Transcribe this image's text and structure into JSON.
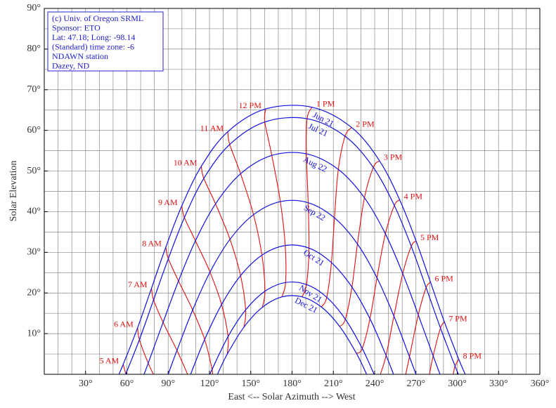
{
  "chart_data": {
    "type": "line",
    "xlabel": "East <-- Solar Azimuth --> West",
    "ylabel": "Solar Elevation",
    "annotations": [
      "(c) Univ. of Oregon SRML",
      "Sponsor: ETO",
      "Lat: 47.18; Long: -98.14",
      "(Standard) time zone: -6",
      "NDAWN station",
      "Dazey, ND"
    ],
    "xlim": [
      0,
      360
    ],
    "ylim": [
      0,
      90
    ],
    "xticks": [
      {
        "value": 30,
        "label": "30°"
      },
      {
        "value": 60,
        "label": "60°"
      },
      {
        "value": 90,
        "label": "90°"
      },
      {
        "value": 120,
        "label": "120°"
      },
      {
        "value": 150,
        "label": "150°"
      },
      {
        "value": 180,
        "label": "180°"
      },
      {
        "value": 210,
        "label": "210°"
      },
      {
        "value": 240,
        "label": "240°"
      },
      {
        "value": 270,
        "label": "270°"
      },
      {
        "value": 300,
        "label": "300°"
      },
      {
        "value": 330,
        "label": "330°"
      },
      {
        "value": 360,
        "label": "360°"
      }
    ],
    "yticks": [
      {
        "value": 10,
        "label": "10°"
      },
      {
        "value": 20,
        "label": "20°"
      },
      {
        "value": 30,
        "label": "30°"
      },
      {
        "value": 40,
        "label": "40°"
      },
      {
        "value": 50,
        "label": "50°"
      },
      {
        "value": 60,
        "label": "60°"
      },
      {
        "value": 70,
        "label": "70°"
      },
      {
        "value": 80,
        "label": "80°"
      },
      {
        "value": 90,
        "label": "90°"
      }
    ],
    "grid": true,
    "minor_grid": {
      "x": 10,
      "y": 5
    },
    "series": [
      {
        "name": "Jun 21",
        "color": "#1010e0",
        "x": [
          54.2,
          57.3,
          67.8,
          77.9,
          88.3,
          99.9,
          114.1,
          133.3,
          160.8,
          194.5,
          223.3,
          243.5,
          258.2,
          270.1,
          280.6,
          290.7,
          301.1,
          305.8
        ],
        "values": [
          0,
          2.42,
          11.46,
          21.18,
          31.29,
          41.44,
          51.18,
          59.68,
          65.28,
          65.7,
          60.71,
          52.53,
          42.91,
          32.78,
          22.64,
          12.84,
          3.69,
          0
        ]
      },
      {
        "name": "Jul 21",
        "color": "#1010e0",
        "x": [
          59.1,
          69.1,
          79.4,
          90.1,
          101.8,
          115.9,
          134.7,
          160.2,
          190.9,
          218.5,
          239.0,
          254.3,
          266.6,
          277.4,
          287.8,
          298.4,
          300.9
        ],
        "values": [
          0,
          8.51,
          18.3,
          28.44,
          38.56,
          48.19,
          56.54,
          62.07,
          62.87,
          58.56,
          50.88,
          41.53,
          31.49,
          21.32,
          11.38,
          2.02,
          0
        ]
      },
      {
        "name": "Aug 22",
        "color": "#1010e0",
        "x": [
          72.5,
          75.5,
          86.3,
          97.5,
          109.8,
          124.4,
          142.6,
          165.3,
          190.4,
          213.6,
          232.6,
          247.8,
          260.4,
          271.7,
          282.5,
          287.5
        ],
        "values": [
          0,
          2.73,
          12.78,
          22.95,
          32.85,
          41.92,
          49.33,
          53.84,
          54.23,
          50.4,
          43.41,
          34.56,
          24.77,
          14.61,
          4.52,
          0
        ]
      },
      {
        "name": "Sep 22",
        "color": "#1010e0",
        "x": [
          90,
          96.4,
          107.8,
          120.4,
          134.9,
          152.0,
          171.5,
          191.7,
          210.8,
          227.5,
          241.7,
          254.0,
          265.3,
          270
        ],
        "values": [
          0,
          5.88,
          15.83,
          25.13,
          33.2,
          39.27,
          42.49,
          42.21,
          38.49,
          32.05,
          23.73,
          14.31,
          4.3,
          0
        ]
      },
      {
        "name": "Oct 21",
        "color": "#1010e0",
        "x": [
          106.3,
          116.5,
          128.8,
          142.6,
          158.1,
          175.0,
          192.3,
          208.6,
          223.5,
          236.6,
          248.3,
          253.7
        ],
        "values": [
          0,
          8.57,
          17.16,
          24.27,
          29.31,
          31.68,
          31.04,
          27.47,
          21.46,
          13.66,
          4.63,
          0
        ]
      },
      {
        "name": "Nov 21",
        "color": "#1010e0",
        "x": [
          120.4,
          121.9,
          133.5,
          146.3,
          160.3,
          175.3,
          190.5,
          205.2,
          218.7,
          231.0,
          239.6
        ],
        "values": [
          0,
          1.21,
          9.28,
          15.84,
          20.43,
          22.58,
          22.07,
          18.94,
          13.54,
          6.36,
          0
        ]
      },
      {
        "name": "Dec 21",
        "color": "#1010e0",
        "x": [
          125.8,
          132.9,
          145.1,
          158.4,
          172.6,
          187.2,
          201.3,
          214.6,
          226.8,
          234.2
        ],
        "values": [
          0,
          4.95,
          11.63,
          16.47,
          19.03,
          19.06,
          16.56,
          11.77,
          5.13,
          0
        ]
      }
    ],
    "hour_lines": [
      {
        "name": "5 AM",
        "color": "#e01010",
        "x": [
          57.3,
          59.3
        ],
        "values": [
          2.42,
          0
        ]
      },
      {
        "name": "6 AM",
        "color": "#e01010",
        "x": [
          67.8,
          69.1,
          75.5,
          79.3
        ],
        "values": [
          11.46,
          8.51,
          2.73,
          0
        ]
      },
      {
        "name": "7 AM",
        "color": "#e01010",
        "x": [
          77.9,
          79.4,
          86.3,
          96.4,
          104.1
        ],
        "values": [
          21.18,
          18.3,
          12.78,
          5.88,
          0
        ]
      },
      {
        "name": "8 AM",
        "color": "#e01010",
        "x": [
          88.3,
          90.1,
          97.5,
          107.8,
          116.5,
          121.9,
          121.9
        ],
        "values": [
          31.29,
          28.44,
          22.95,
          15.83,
          8.57,
          1.21,
          0
        ]
      },
      {
        "name": "9 AM",
        "color": "#e01010",
        "x": [
          99.9,
          101.8,
          109.8,
          120.4,
          128.8,
          133.5,
          132.9
        ],
        "values": [
          41.44,
          38.56,
          32.85,
          25.13,
          17.16,
          9.28,
          4.95
        ]
      },
      {
        "name": "10 AM",
        "color": "#e01010",
        "x": [
          114.1,
          115.9,
          124.4,
          134.9,
          142.6,
          146.3,
          145.1
        ],
        "values": [
          51.18,
          48.19,
          41.92,
          33.2,
          24.27,
          15.84,
          11.63
        ]
      },
      {
        "name": "11 AM",
        "color": "#e01010",
        "x": [
          133.3,
          134.7,
          142.6,
          152.0,
          158.1,
          160.3,
          158.4
        ],
        "values": [
          59.68,
          56.54,
          49.33,
          39.27,
          29.31,
          20.43,
          16.47
        ]
      },
      {
        "name": "12 PM",
        "color": "#e01010",
        "x": [
          160.8,
          160.2,
          165.3,
          171.5,
          175.0,
          175.3,
          172.6
        ],
        "values": [
          65.28,
          62.07,
          53.84,
          42.49,
          31.68,
          22.58,
          19.03
        ]
      },
      {
        "name": "1 PM",
        "color": "#e01010",
        "x": [
          194.5,
          190.9,
          190.4,
          191.7,
          192.3,
          190.5,
          187.2
        ],
        "values": [
          65.7,
          62.87,
          54.23,
          42.21,
          31.04,
          22.07,
          19.06
        ]
      },
      {
        "name": "2 PM",
        "color": "#e01010",
        "x": [
          223.3,
          218.5,
          213.6,
          210.8,
          208.6,
          205.2,
          201.3
        ],
        "values": [
          60.71,
          58.56,
          50.4,
          38.49,
          27.47,
          18.94,
          16.56
        ]
      },
      {
        "name": "3 PM",
        "color": "#e01010",
        "x": [
          243.5,
          239.0,
          232.6,
          227.5,
          223.5,
          218.7,
          214.6
        ],
        "values": [
          52.53,
          50.88,
          43.41,
          32.05,
          21.46,
          13.54,
          11.77
        ]
      },
      {
        "name": "4 PM",
        "color": "#e01010",
        "x": [
          258.2,
          254.3,
          247.8,
          241.7,
          236.6,
          231.0,
          226.8
        ],
        "values": [
          42.91,
          41.53,
          34.56,
          23.73,
          13.66,
          6.36,
          5.13
        ]
      },
      {
        "name": "5 PM",
        "color": "#e01010",
        "x": [
          270.1,
          266.6,
          260.4,
          254.0,
          248.3,
          244.2
        ],
        "values": [
          32.78,
          31.49,
          24.77,
          14.31,
          4.63,
          0
        ]
      },
      {
        "name": "6 PM",
        "color": "#e01010",
        "x": [
          280.6,
          277.4,
          271.7,
          265.3,
          262.6
        ],
        "values": [
          22.64,
          21.32,
          14.61,
          4.3,
          0
        ]
      },
      {
        "name": "7 PM",
        "color": "#e01010",
        "x": [
          290.7,
          287.8,
          282.5,
          279.8
        ],
        "values": [
          12.84,
          11.38,
          4.52,
          0
        ]
      },
      {
        "name": "8 PM",
        "color": "#e01010",
        "x": [
          301.1,
          298.4,
          297.1
        ],
        "values": [
          3.69,
          2.02,
          0
        ]
      }
    ]
  }
}
